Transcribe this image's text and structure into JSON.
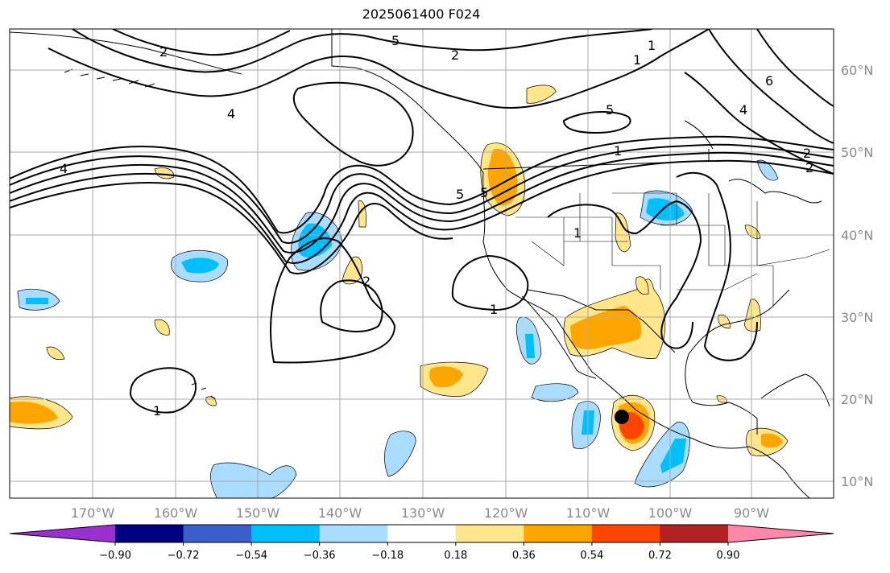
{
  "title": "2025061400 F024",
  "lon_labels": [
    "170°W",
    "160°W",
    "150°W",
    "140°W",
    "130°W",
    "120°W",
    "110°W",
    "100°W",
    "90°W"
  ],
  "lat_labels": [
    "60°N",
    "50°N",
    "40°N",
    "30°N",
    "20°N",
    "10°N"
  ],
  "colorbar": {
    "colors": [
      "#9b30d0",
      "#000080",
      "#3a5fcd",
      "#00bfff",
      "#aadcff",
      "#ffffff",
      "#ffe68a",
      "#ffa500",
      "#ff4500",
      "#b22222",
      "#ff88aa"
    ],
    "tick_labels": [
      "−0.90",
      "−0.72",
      "−0.54",
      "−0.36",
      "−0.18",
      "0.18",
      "0.36",
      "0.54",
      "0.72",
      "0.90"
    ]
  },
  "contour_labels": [
    "5",
    "2",
    "1",
    "2",
    "4",
    "5",
    "5",
    "1",
    "4",
    "2",
    "1",
    "1",
    "2",
    "1",
    "1",
    "4",
    "2",
    "5",
    "6"
  ],
  "marker": "storm-center-dot"
}
